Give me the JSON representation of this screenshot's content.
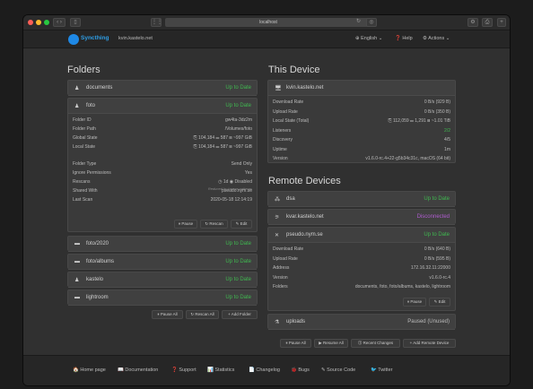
{
  "browser": {
    "url": "localhost"
  },
  "nav": {
    "brand": "Syncthing",
    "host": "kvin.kastelo.net",
    "language": "⊕ English ⌄",
    "help": "❓ Help",
    "actions": "⚙ Actions ⌄"
  },
  "folders": {
    "title": "Folders",
    "items": [
      {
        "icon": "user-icon",
        "name": "documents",
        "status": "Up to Date"
      },
      {
        "icon": "user-icon",
        "name": "foto",
        "status": "Up to Date"
      },
      {
        "icon": "folder-icon",
        "name": "foto/2020",
        "status": "Up to Date"
      },
      {
        "icon": "folder-icon",
        "name": "foto/albums",
        "status": "Up to Date"
      },
      {
        "icon": "user-icon",
        "name": "kastelo",
        "status": "Up to Date"
      },
      {
        "icon": "folder-icon",
        "name": "lightroom",
        "status": "Up to Date"
      }
    ],
    "foto_details": [
      {
        "k": "Folder ID",
        "v": "gw4ta-3dz2m"
      },
      {
        "k": "Folder Path",
        "v": "/Volumes/foto"
      },
      {
        "k": "Global State",
        "v": "⎘ 104,184  ▭ 587  ⊟ ~997 GiB"
      },
      {
        "k": "Local State",
        "v": "⎘ 104,184  ▭ 587  ⊟ ~997 GiB"
      },
      {
        "k": "Folder Type",
        "v": "Send Only"
      },
      {
        "k": "Ignore Permissions",
        "v": "Yes"
      },
      {
        "k": "Rescans",
        "v": "◷ 1d  ◉ Disabled"
      },
      {
        "k": "Shared With",
        "v": "pseudo.nym.se"
      },
      {
        "k": "Last Scan",
        "v": "2020-05-18 12:14:19"
      }
    ],
    "note": "Reduced by ignore patterns",
    "foto_pause": "⏸ Pause",
    "foto_rescan": "↻ Rescan",
    "foto_edit": "✎ Edit",
    "pause_all": "⏸ Pause All",
    "rescan_all": "↻ Rescan All",
    "add_folder": "+ Add Folder"
  },
  "this_device": {
    "title": "This Device",
    "name": "kvin.kastelo.net",
    "rows": [
      {
        "k": "Download Rate",
        "v": "0 B/s (929 B)"
      },
      {
        "k": "Upload Rate",
        "v": "0 B/s (350 B)"
      },
      {
        "k": "Local State (Total)",
        "v": "⎘ 112,059  ▭ 1,291  ⊟ ~1.01 TiB"
      },
      {
        "k": "Listeners",
        "v": "2/2"
      },
      {
        "k": "Discovery",
        "v": "4/5"
      },
      {
        "k": "Uptime",
        "v": "1m"
      },
      {
        "k": "Version",
        "v": "v1.6.0-rc.4+22-g5b34c31c, macOS (64 bit)"
      }
    ]
  },
  "remote": {
    "title": "Remote Devices",
    "devices": [
      {
        "name": "dsa",
        "status": "Up to Date",
        "status_color": "#3fb950"
      },
      {
        "name": "kvar.kastelo.net",
        "status": "Disconnected",
        "status_color": "#b05cd0"
      },
      {
        "name": "pseudo.nym.se",
        "status": "Up to Date",
        "status_color": "#3fb950"
      },
      {
        "name": "uploads",
        "status": "Paused (Unused)",
        "status_color": "#bbbbbb"
      }
    ],
    "pseudo_rows": [
      {
        "k": "Download Rate",
        "v": "0 B/s (640 B)"
      },
      {
        "k": "Upload Rate",
        "v": "0 B/s (595 B)"
      },
      {
        "k": "Address",
        "v": "172.16.32.11:22000"
      },
      {
        "k": "Version",
        "v": "v1.6.0-rc.4"
      },
      {
        "k": "Folders",
        "v": "documents, foto, foto/albums, kastelo, lightroom"
      }
    ],
    "pseudo_pause": "⏸ Pause",
    "pseudo_edit": "✎ Edit",
    "pause_all": "⏸ Pause All",
    "resume_all": "▶ Resume All",
    "recent_changes": "⓵ Recent Changes",
    "add_remote": "+ Add Remote Device"
  },
  "footer": {
    "links": [
      "🏠 Home page",
      "📖 Documentation",
      "❓ Support",
      "📊 Statistics",
      "📄 Changelog",
      "🐞 Bugs",
      "✎ Source Code",
      "🐦 Twitter"
    ]
  },
  "colors": {
    "accent": "#2e9ee6",
    "ok": "#3fb950",
    "disconnected": "#b05cd0"
  }
}
